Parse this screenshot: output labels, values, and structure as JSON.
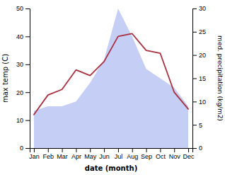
{
  "chart_data": {
    "type": "line",
    "xlabel": "date (month)",
    "ylabel": "max temp (C)",
    "y2label": "med. precipitation (kg/m2)",
    "categories": [
      "Jan",
      "Feb",
      "Mar",
      "Apr",
      "May",
      "Jun",
      "Jul",
      "Aug",
      "Sep",
      "Oct",
      "Nov",
      "Dec"
    ],
    "series": [
      {
        "type": "area",
        "axis": "y2",
        "color": "#c5cef5",
        "values": [
          8,
          9,
          9,
          10,
          14,
          19,
          30,
          24,
          17,
          15,
          13,
          9
        ]
      },
      {
        "type": "line",
        "color": "#a83040",
        "values": [
          12,
          19,
          21,
          28,
          26,
          31,
          40,
          41,
          35,
          34,
          20,
          14
        ]
      }
    ],
    "ylim": [
      0,
      50
    ],
    "yticks": [
      0,
      10,
      20,
      30,
      40,
      50
    ],
    "y2lim": [
      0,
      30
    ],
    "y2ticks": [
      0,
      5,
      10,
      15,
      20,
      25,
      30
    ],
    "grid": false
  }
}
